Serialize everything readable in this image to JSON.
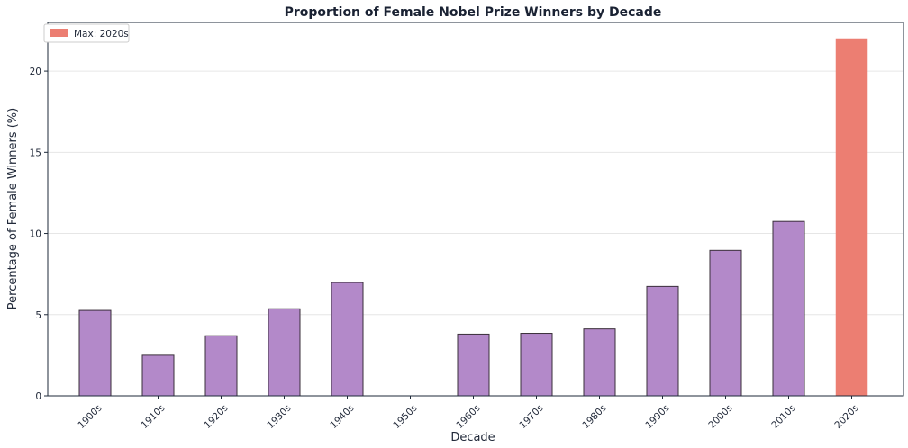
{
  "colors": {
    "bar": "#b389c9",
    "highlight": "#ec7e72",
    "bar_edge": "#3a2f3a",
    "axis": "#1e2a3a",
    "grid": "#e6e6e6"
  },
  "chart_data": {
    "type": "bar",
    "title": "Proportion of Female Nobel Prize Winners by Decade",
    "xlabel": "Decade",
    "ylabel": "Percentage of Female Winners (%)",
    "categories": [
      "1900s",
      "1910s",
      "1920s",
      "1930s",
      "1940s",
      "1950s",
      "1960s",
      "1970s",
      "1980s",
      "1990s",
      "2000s",
      "2010s",
      "2020s"
    ],
    "values": [
      5.26,
      2.5,
      3.7,
      5.36,
      6.98,
      0,
      3.8,
      3.85,
      4.12,
      6.74,
      8.96,
      10.74,
      22.0
    ],
    "yticks": [
      0,
      5,
      10,
      15,
      20
    ],
    "ylim": [
      0,
      22.0
    ],
    "highlight_index": 12,
    "legend": {
      "label": "Max: 2020s",
      "position": "top-left"
    },
    "grid": "horizontal"
  }
}
